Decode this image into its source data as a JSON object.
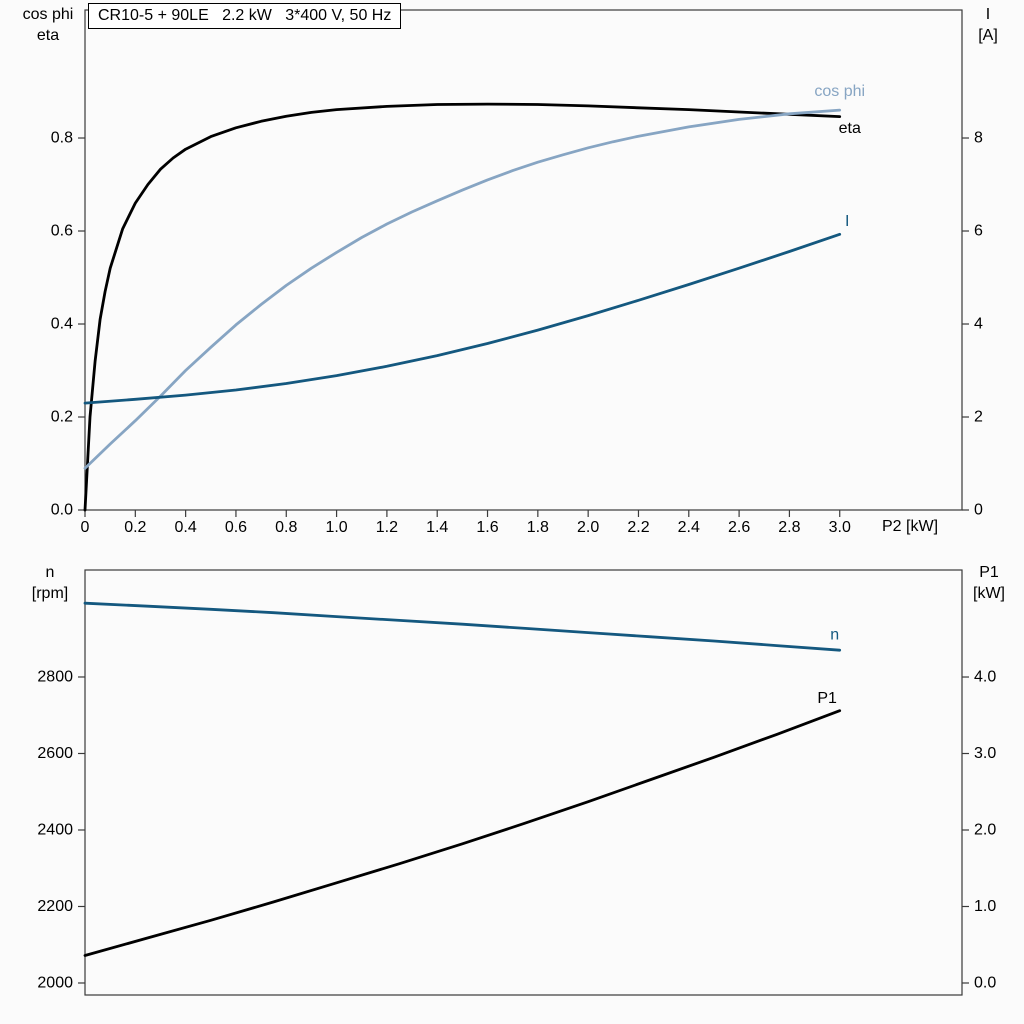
{
  "colors": {
    "frame": "#3a3a3a",
    "text": "#000000",
    "eta_black": "#000000",
    "cos_phi_blue": "#87a5c3",
    "dark_blue": "#14587f"
  },
  "chart_data": [
    {
      "type": "line",
      "title": "CR10-5 + 90LE   2.2 kW   3*400 V, 50 Hz",
      "grid": false,
      "x_axis": {
        "label": "P2 [kW]",
        "lim": [
          0,
          3.486
        ],
        "tick_values": [
          0,
          0.2,
          0.4,
          0.6,
          0.8,
          1.0,
          1.2,
          1.4,
          1.6,
          1.8,
          2.0,
          2.2,
          2.4,
          2.6,
          2.8,
          3.0
        ],
        "tick_labels": [
          "0",
          "0.2",
          "0.4",
          "0.6",
          "0.8",
          "1.0",
          "1.2",
          "1.4",
          "1.6",
          "1.8",
          "2.0",
          "2.2",
          "2.4",
          "2.6",
          "2.8",
          "3.0"
        ]
      },
      "left_axis": {
        "label_lines": [
          "cos phi",
          "eta"
        ],
        "lim": [
          0,
          1.0753
        ],
        "tick_values": [
          0,
          0.2,
          0.4,
          0.6,
          0.8
        ],
        "tick_labels": [
          "0.0",
          "0.2",
          "0.4",
          "0.6",
          "0.8"
        ]
      },
      "right_axis": {
        "label_lines": [
          "I",
          "[A]"
        ],
        "lim": [
          0,
          10.753
        ],
        "tick_values": [
          0,
          2,
          4,
          6,
          8
        ],
        "tick_labels": [
          "0",
          "2",
          "4",
          "6",
          "8"
        ]
      },
      "series": [
        {
          "id": "eta",
          "label": "eta",
          "axis": "left",
          "color": "#000000",
          "label_xy": [
            3.04,
            0.82
          ],
          "points": [
            [
              0,
              0
            ],
            [
              0.02,
              0.2
            ],
            [
              0.04,
              0.32
            ],
            [
              0.06,
              0.41
            ],
            [
              0.08,
              0.47
            ],
            [
              0.1,
              0.52
            ],
            [
              0.15,
              0.605
            ],
            [
              0.2,
              0.66
            ],
            [
              0.25,
              0.7
            ],
            [
              0.3,
              0.733
            ],
            [
              0.35,
              0.757
            ],
            [
              0.4,
              0.776
            ],
            [
              0.5,
              0.803
            ],
            [
              0.6,
              0.822
            ],
            [
              0.7,
              0.836
            ],
            [
              0.8,
              0.847
            ],
            [
              0.9,
              0.855
            ],
            [
              1.0,
              0.861
            ],
            [
              1.2,
              0.868
            ],
            [
              1.4,
              0.872
            ],
            [
              1.6,
              0.873
            ],
            [
              1.8,
              0.872
            ],
            [
              2.0,
              0.869
            ],
            [
              2.2,
              0.865
            ],
            [
              2.4,
              0.861
            ],
            [
              2.6,
              0.856
            ],
            [
              2.8,
              0.851
            ],
            [
              3.0,
              0.846
            ]
          ]
        },
        {
          "id": "cos-phi",
          "label": "cos phi",
          "axis": "left",
          "color": "#87a5c3",
          "label_xy": [
            3.0,
            0.9
          ],
          "points": [
            [
              0,
              0.09
            ],
            [
              0.1,
              0.142
            ],
            [
              0.2,
              0.192
            ],
            [
              0.3,
              0.245
            ],
            [
              0.4,
              0.3
            ],
            [
              0.5,
              0.35
            ],
            [
              0.6,
              0.398
            ],
            [
              0.7,
              0.442
            ],
            [
              0.8,
              0.483
            ],
            [
              0.9,
              0.52
            ],
            [
              1.0,
              0.554
            ],
            [
              1.1,
              0.586
            ],
            [
              1.2,
              0.615
            ],
            [
              1.3,
              0.641
            ],
            [
              1.4,
              0.665
            ],
            [
              1.5,
              0.688
            ],
            [
              1.6,
              0.71
            ],
            [
              1.7,
              0.73
            ],
            [
              1.8,
              0.748
            ],
            [
              1.9,
              0.764
            ],
            [
              2.0,
              0.779
            ],
            [
              2.1,
              0.792
            ],
            [
              2.2,
              0.804
            ],
            [
              2.4,
              0.824
            ],
            [
              2.6,
              0.84
            ],
            [
              2.8,
              0.852
            ],
            [
              3.0,
              0.86
            ]
          ]
        },
        {
          "id": "current",
          "label": "I",
          "axis": "right",
          "color": "#14587f",
          "label_xy": [
            3.03,
            6.2
          ],
          "points": [
            [
              0,
              2.3
            ],
            [
              0.2,
              2.38
            ],
            [
              0.4,
              2.47
            ],
            [
              0.6,
              2.58
            ],
            [
              0.8,
              2.72
            ],
            [
              1.0,
              2.89
            ],
            [
              1.2,
              3.09
            ],
            [
              1.4,
              3.32
            ],
            [
              1.6,
              3.58
            ],
            [
              1.8,
              3.87
            ],
            [
              2.0,
              4.18
            ],
            [
              2.2,
              4.51
            ],
            [
              2.4,
              4.85
            ],
            [
              2.6,
              5.2
            ],
            [
              2.8,
              5.56
            ],
            [
              3.0,
              5.93
            ]
          ]
        }
      ]
    },
    {
      "type": "line",
      "title": "",
      "grid": false,
      "x_axis": {
        "label": "",
        "lim": [
          0,
          3.486
        ],
        "tick_values": [],
        "tick_labels": []
      },
      "left_axis": {
        "label_lines": [
          "n",
          "[rpm]"
        ],
        "lim": [
          1968.6,
          3079.7
        ],
        "tick_values": [
          2000,
          2200,
          2400,
          2600,
          2800
        ],
        "tick_labels": [
          "2000",
          "2200",
          "2400",
          "2600",
          "2800"
        ]
      },
      "right_axis": {
        "label_lines": [
          "P1",
          "[kW]"
        ],
        "lim": [
          -0.157,
          5.399
        ],
        "tick_values": [
          0,
          1,
          2,
          3,
          4
        ],
        "tick_labels": [
          "0.0",
          "1.0",
          "2.0",
          "3.0",
          "4.0"
        ]
      },
      "series": [
        {
          "id": "speed",
          "label": "n",
          "axis": "left",
          "color": "#14587f",
          "label_xy": [
            2.98,
            2910
          ],
          "points": [
            [
              0,
              2993
            ],
            [
              0.25,
              2985
            ],
            [
              0.5,
              2977
            ],
            [
              0.75,
              2968
            ],
            [
              1.0,
              2958
            ],
            [
              1.25,
              2948
            ],
            [
              1.5,
              2938
            ],
            [
              1.75,
              2927
            ],
            [
              2.0,
              2916
            ],
            [
              2.25,
              2905
            ],
            [
              2.5,
              2894
            ],
            [
              2.75,
              2882
            ],
            [
              3.0,
              2870
            ]
          ]
        },
        {
          "id": "power-input",
          "label": "P1",
          "axis": "right",
          "color": "#000000",
          "label_xy": [
            2.95,
            3.72
          ],
          "points": [
            [
              0,
              0.36
            ],
            [
              0.25,
              0.59
            ],
            [
              0.5,
              0.82
            ],
            [
              0.75,
              1.06
            ],
            [
              1.0,
              1.31
            ],
            [
              1.25,
              1.56
            ],
            [
              1.5,
              1.82
            ],
            [
              1.75,
              2.09
            ],
            [
              2.0,
              2.37
            ],
            [
              2.25,
              2.66
            ],
            [
              2.5,
              2.95
            ],
            [
              2.75,
              3.25
            ],
            [
              3.0,
              3.56
            ]
          ]
        }
      ]
    }
  ]
}
